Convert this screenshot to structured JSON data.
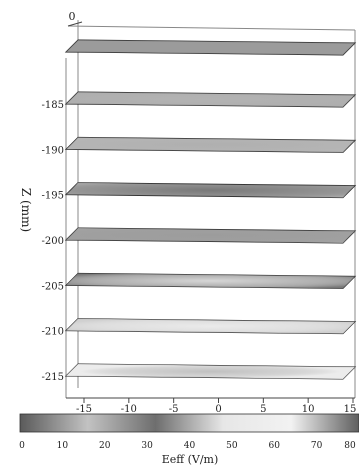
{
  "chart_data": {
    "type": "heatmap",
    "title": "",
    "z_axis": {
      "label": "Z (mm)",
      "ticks": [
        "-185",
        "-190",
        "-195",
        "-200",
        "-205",
        "-210",
        "-215"
      ],
      "top_tick": "0"
    },
    "x_axis": {
      "label": "",
      "ticks": [
        "-15",
        "-10",
        "-5",
        "0",
        "5",
        "10",
        "15"
      ],
      "range": [
        -15,
        15
      ]
    },
    "colorbar": {
      "label": "Eeff (V/m)",
      "ticks": [
        "0",
        "10",
        "20",
        "30",
        "40",
        "50",
        "60",
        "70",
        "80"
      ],
      "range": [
        0,
        80
      ],
      "colors": [
        "#5a5a5a",
        "#c2c2c2",
        "#6e6e6e",
        "#e7e7e7",
        "#f2f2f2",
        "#5e5e5e"
      ]
    },
    "slices": [
      {
        "z": 0,
        "base_level": 10,
        "peak_level": 10,
        "spread_x": 1.0
      },
      {
        "z": -185,
        "base_level": 12,
        "peak_level": 14,
        "spread_x": 0.9
      },
      {
        "z": -190,
        "base_level": 15,
        "peak_level": 20,
        "spread_x": 0.8
      },
      {
        "z": -195,
        "base_level": 18,
        "peak_level": 32,
        "spread_x": 0.7
      },
      {
        "z": -200,
        "base_level": 22,
        "peak_level": 38,
        "spread_x": 0.65
      },
      {
        "z": -205,
        "base_level": 30,
        "peak_level": 48,
        "spread_x": 0.6
      },
      {
        "z": -210,
        "base_level": 45,
        "peak_level": 60,
        "spread_x": 0.55
      },
      {
        "z": -215,
        "base_level": 55,
        "peak_level": 18,
        "spread_x": 0.45
      }
    ]
  }
}
